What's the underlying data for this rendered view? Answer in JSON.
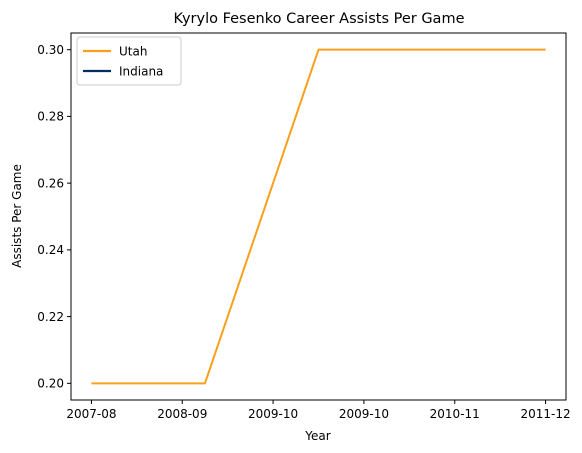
{
  "chart_data": {
    "type": "line",
    "title": "Kyrylo Fesenko Career Assists Per Game",
    "xlabel": "Year",
    "ylabel": "Assists Per Game",
    "x": [
      "2007-08",
      "2008-09",
      "2009-10",
      "2009-10",
      "2010-11",
      "2011-12"
    ],
    "ylim": [
      0.195,
      0.305
    ],
    "yticks": [
      0.2,
      0.22,
      0.24,
      0.26,
      0.28,
      0.3
    ],
    "ytick_labels": [
      "0.20",
      "0.22",
      "0.24",
      "0.26",
      "0.28",
      "0.30"
    ],
    "grid": false,
    "legend_position": "top-left",
    "series": [
      {
        "name": "Utah",
        "color": "#F9A01B",
        "points": [
          {
            "x": 0,
            "y": 0.2
          },
          {
            "x": 1.25,
            "y": 0.2
          },
          {
            "x": 2.5,
            "y": 0.3
          },
          {
            "x": 5,
            "y": 0.3
          }
        ]
      },
      {
        "name": "Indiana",
        "color": "#002D62",
        "points": []
      }
    ]
  }
}
